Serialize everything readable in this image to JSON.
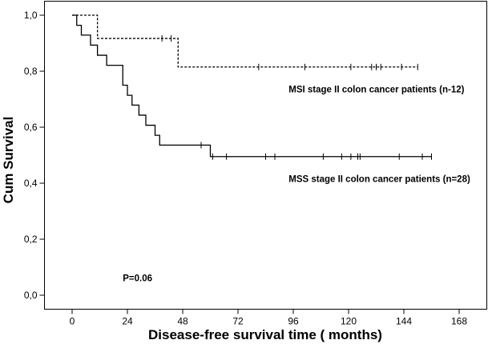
{
  "chart_data": {
    "type": "line",
    "xlabel": "Disease-free survival time ( months)",
    "ylabel": "Cum Survival",
    "xlim": [
      -12,
      180
    ],
    "ylim": [
      -0.05,
      1.05
    ],
    "x_ticks": [
      0,
      24,
      48,
      72,
      96,
      120,
      144,
      168
    ],
    "x_tick_labels": [
      "0",
      "24",
      "48",
      "72",
      "96",
      "120",
      "144",
      "168"
    ],
    "y_ticks": [
      0.0,
      0.2,
      0.4,
      0.6,
      0.8,
      1.0
    ],
    "y_tick_labels": [
      "0,0",
      "0,2",
      "0,4",
      "0,6",
      "0,8",
      "1,0"
    ],
    "grid": false,
    "annotations": [
      {
        "text": "MSI stage II colon cancer patients (n-12)",
        "x": 94,
        "y": 0.725
      },
      {
        "text": "MSS stage II colon cancer patients (n=28)",
        "x": 94,
        "y": 0.405
      },
      {
        "text": "P=0.06",
        "x": 22,
        "y": 0.05
      }
    ],
    "series": [
      {
        "style": "dashed",
        "steps": [
          [
            2,
            1.0
          ],
          [
            11,
            0.917
          ],
          [
            46,
            0.815
          ],
          [
            150,
            0.815
          ]
        ],
        "censored": [
          [
            39,
            0.917
          ],
          [
            43,
            0.917
          ],
          [
            81,
            0.815
          ],
          [
            101,
            0.815
          ],
          [
            121,
            0.815
          ],
          [
            130,
            0.815
          ],
          [
            132,
            0.815
          ],
          [
            134,
            0.815
          ],
          [
            143,
            0.815
          ],
          [
            150,
            0.815
          ]
        ]
      },
      {
        "style": "solid",
        "steps": [
          [
            2,
            0.964
          ],
          [
            4,
            0.929
          ],
          [
            8,
            0.893
          ],
          [
            11,
            0.857
          ],
          [
            15,
            0.821
          ],
          [
            22,
            0.75
          ],
          [
            24,
            0.714
          ],
          [
            26,
            0.679
          ],
          [
            29,
            0.643
          ],
          [
            32,
            0.607
          ],
          [
            36,
            0.571
          ],
          [
            38,
            0.536
          ],
          [
            60,
            0.495
          ],
          [
            156,
            0.495
          ]
        ],
        "censored": [
          [
            56,
            0.536
          ],
          [
            61,
            0.495
          ],
          [
            67,
            0.495
          ],
          [
            84,
            0.495
          ],
          [
            88,
            0.495
          ],
          [
            109,
            0.495
          ],
          [
            117,
            0.495
          ],
          [
            121,
            0.495
          ],
          [
            124,
            0.495
          ],
          [
            125,
            0.495
          ],
          [
            142,
            0.495
          ],
          [
            152,
            0.495
          ],
          [
            156,
            0.495
          ]
        ]
      }
    ]
  }
}
